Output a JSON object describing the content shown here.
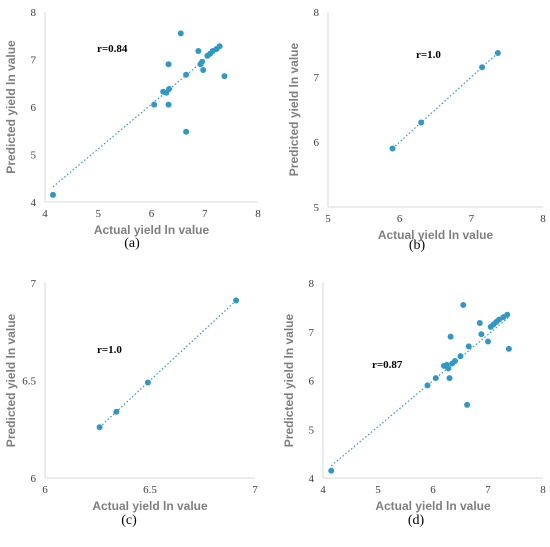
{
  "colors": {
    "marker": "#2e98c7",
    "trend": "#2e98c7",
    "axis": "#d9d9d9",
    "label": "#7f7f7f"
  },
  "chart_data": [
    {
      "type": "scatter",
      "panel_label": "(a)",
      "title": "",
      "xlabel": "Actual yield ln value",
      "ylabel": "Predicted yield ln value",
      "xlim": [
        4,
        8
      ],
      "ylim": [
        4,
        8
      ],
      "xticks": [
        "4",
        "5",
        "6",
        "7",
        "8"
      ],
      "yticks": [
        "4",
        "5",
        "6",
        "7",
        "8"
      ],
      "annotation": "r=0.84",
      "grid": false,
      "trendline": {
        "style": "dotted",
        "from": [
          4.15,
          4.32
        ],
        "to": [
          7.3,
          7.28
        ]
      },
      "points": [
        [
          4.15,
          4.15
        ],
        [
          6.05,
          6.05
        ],
        [
          6.22,
          6.32
        ],
        [
          6.28,
          6.3
        ],
        [
          6.33,
          6.38
        ],
        [
          6.32,
          6.05
        ],
        [
          6.32,
          6.9
        ],
        [
          6.55,
          7.55
        ],
        [
          6.65,
          6.68
        ],
        [
          6.65,
          5.48
        ],
        [
          6.88,
          7.18
        ],
        [
          6.92,
          6.9
        ],
        [
          6.95,
          6.95
        ],
        [
          6.97,
          6.78
        ],
        [
          7.05,
          7.08
        ],
        [
          7.1,
          7.12
        ],
        [
          7.15,
          7.18
        ],
        [
          7.22,
          7.22
        ],
        [
          7.28,
          7.28
        ],
        [
          7.37,
          6.65
        ]
      ]
    },
    {
      "type": "scatter",
      "panel_label": "(b)",
      "title": "",
      "xlabel": "Actual yield ln value",
      "ylabel": "Predicted yield ln value",
      "xlim": [
        5,
        8
      ],
      "ylim": [
        5,
        8
      ],
      "xticks": [
        "5",
        "6",
        "7",
        "8"
      ],
      "yticks": [
        "5",
        "6",
        "7",
        "8"
      ],
      "annotation": "r=1.0",
      "grid": false,
      "trendline": {
        "style": "dotted",
        "from": [
          5.9,
          5.9
        ],
        "to": [
          7.37,
          7.37
        ]
      },
      "points": [
        [
          5.9,
          5.9
        ],
        [
          6.3,
          6.3
        ],
        [
          7.15,
          7.15
        ],
        [
          7.37,
          7.37
        ]
      ]
    },
    {
      "type": "scatter",
      "panel_label": "(c)",
      "title": "",
      "xlabel": "Actual yield ln value",
      "ylabel": "Predicted yield ln value",
      "xlim": [
        6,
        7
      ],
      "ylim": [
        6,
        7
      ],
      "xticks": [
        "6",
        "6.5",
        "7"
      ],
      "yticks": [
        "6",
        "6.5",
        "7"
      ],
      "annotation": "r=1.0",
      "grid": false,
      "trendline": {
        "style": "dotted",
        "from": [
          6.26,
          6.26
        ],
        "to": [
          6.91,
          6.91
        ]
      },
      "points": [
        [
          6.26,
          6.26
        ],
        [
          6.34,
          6.34
        ],
        [
          6.49,
          6.49
        ],
        [
          6.91,
          6.91
        ]
      ]
    },
    {
      "type": "scatter",
      "panel_label": "(d)",
      "title": "",
      "xlabel": "Actual yield ln value",
      "ylabel": "Predicted yield ln value",
      "xlim": [
        4,
        8
      ],
      "ylim": [
        4,
        8
      ],
      "xticks": [
        "4",
        "5",
        "6",
        "7",
        "8"
      ],
      "yticks": [
        "4",
        "5",
        "6",
        "7",
        "8"
      ],
      "annotation": "r=0.87",
      "grid": false,
      "trendline": {
        "style": "dotted",
        "from": [
          4.15,
          4.25
        ],
        "to": [
          7.4,
          7.32
        ]
      },
      "points": [
        [
          4.15,
          4.15
        ],
        [
          5.9,
          5.9
        ],
        [
          6.05,
          6.05
        ],
        [
          6.2,
          6.3
        ],
        [
          6.25,
          6.32
        ],
        [
          6.28,
          6.25
        ],
        [
          6.3,
          6.05
        ],
        [
          6.32,
          6.9
        ],
        [
          6.35,
          6.35
        ],
        [
          6.4,
          6.4
        ],
        [
          6.5,
          6.5
        ],
        [
          6.55,
          7.55
        ],
        [
          6.62,
          5.5
        ],
        [
          6.65,
          6.7
        ],
        [
          6.85,
          7.18
        ],
        [
          6.88,
          6.95
        ],
        [
          7.0,
          6.8
        ],
        [
          7.05,
          7.1
        ],
        [
          7.1,
          7.15
        ],
        [
          7.15,
          7.2
        ],
        [
          7.2,
          7.25
        ],
        [
          7.28,
          7.3
        ],
        [
          7.35,
          7.35
        ],
        [
          7.38,
          6.65
        ]
      ]
    }
  ]
}
